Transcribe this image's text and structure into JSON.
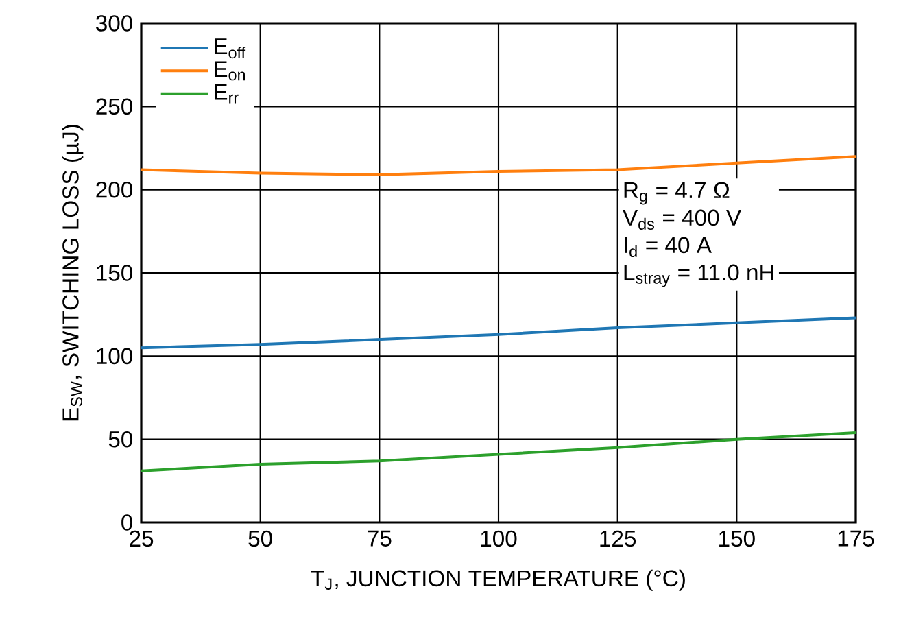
{
  "chart_data": {
    "type": "line",
    "xlabel": "T$_{J}$, JUNCTION TEMPERATURE (°C)",
    "ylabel": "E$_{SW}$, SWITCHING LOSS (µJ)",
    "x": [
      25,
      50,
      75,
      100,
      125,
      150,
      175
    ],
    "series": [
      {
        "name": "E$_{off}$",
        "color": "#1f77b4",
        "values": [
          105,
          107,
          110,
          113,
          117,
          120,
          123
        ]
      },
      {
        "name": "E$_{on}$",
        "color": "#ff7f0e",
        "values": [
          212,
          210,
          209,
          211,
          212,
          216,
          220
        ]
      },
      {
        "name": "E$_{rr}$",
        "color": "#2ca02c",
        "values": [
          31,
          35,
          37,
          41,
          45,
          50,
          54
        ]
      }
    ],
    "xlim": [
      25,
      175
    ],
    "ylim": [
      0,
      300
    ],
    "xticks": [
      25,
      50,
      75,
      100,
      125,
      150,
      175
    ],
    "yticks": [
      0,
      50,
      100,
      150,
      200,
      250,
      300
    ],
    "grid": true,
    "legend": "top left",
    "marker": "none",
    "line_style": "solid",
    "annotations": [
      "R$_{g}$ = 4.7 Ω",
      "V$_{ds}$ = 400 V",
      "I$_{d}$ = 40 A",
      "L$_{stray}$ = 11.0 nH"
    ]
  }
}
